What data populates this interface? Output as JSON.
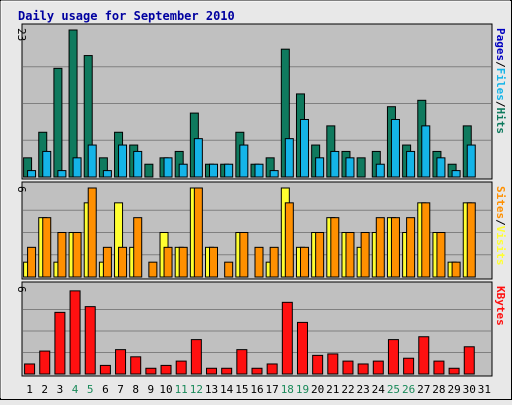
{
  "chart_data": {
    "type": "bar",
    "title": "Daily usage for September 2010",
    "categories": [
      "1",
      "2",
      "3",
      "4",
      "5",
      "6",
      "7",
      "8",
      "9",
      "10",
      "11",
      "12",
      "13",
      "14",
      "15",
      "16",
      "17",
      "18",
      "19",
      "20",
      "21",
      "22",
      "23",
      "24",
      "25",
      "26",
      "27",
      "28",
      "29",
      "30",
      "31"
    ],
    "weekend_days": [
      "4",
      "5",
      "11",
      "12",
      "18",
      "19",
      "25",
      "26"
    ],
    "panels": [
      {
        "id": "top",
        "ymax_label": "23",
        "ymax": 23,
        "legend": [
          "Pages",
          "/",
          "Files",
          "/",
          "Hits"
        ],
        "series": [
          {
            "name": "Hits",
            "color": "#0f7a5e",
            "values": [
              3,
              7,
              17,
              23,
              19,
              3,
              7,
              5,
              2,
              3,
              4,
              10,
              2,
              2,
              7,
              2,
              3,
              20,
              13,
              5,
              8,
              4,
              3,
              4,
              11,
              5,
              12,
              4,
              2,
              8,
              0
            ]
          },
          {
            "name": "Files",
            "color": "#14b4e8",
            "values": [
              1,
              4,
              1,
              3,
              5,
              1,
              5,
              4,
              0,
              3,
              2,
              6,
              2,
              2,
              5,
              2,
              1,
              6,
              9,
              3,
              4,
              3,
              0,
              2,
              9,
              4,
              8,
              3,
              1,
              5,
              0
            ]
          },
          {
            "name": "Pages",
            "color": "#0000c0",
            "values": [
              0,
              0,
              0,
              0,
              0,
              0,
              0,
              0,
              0,
              0,
              0,
              0,
              0,
              0,
              0,
              0,
              0,
              0,
              0,
              0,
              0,
              0,
              0,
              0,
              0,
              0,
              0,
              0,
              0,
              0,
              0
            ]
          }
        ]
      },
      {
        "id": "mid",
        "ymax_label": "6",
        "ymax": 6,
        "legend": [
          "Sites",
          "/",
          "Visits"
        ],
        "series": [
          {
            "name": "Visits",
            "color": "#ffff30",
            "values": [
              1,
              4,
              1,
              3,
              5,
              1,
              5,
              2,
              0,
              3,
              2,
              6,
              2,
              0,
              3,
              0,
              1,
              6,
              2,
              3,
              4,
              3,
              2,
              3,
              4,
              3,
              5,
              3,
              1,
              5,
              0
            ]
          },
          {
            "name": "Sites",
            "color": "#ff9000",
            "values": [
              2,
              4,
              3,
              3,
              6,
              2,
              2,
              4,
              1,
              2,
              2,
              6,
              2,
              1,
              3,
              2,
              2,
              5,
              2,
              3,
              4,
              3,
              3,
              4,
              4,
              4,
              5,
              3,
              1,
              5,
              0
            ]
          }
        ]
      },
      {
        "id": "bot",
        "ymax_label": "6",
        "ymax": 6,
        "legend": [
          "KBytes"
        ],
        "series": [
          {
            "name": "KBytes",
            "color": "#ff1010",
            "values": [
              0.7,
              1.6,
              4.3,
              5.8,
              4.7,
              0.6,
              1.7,
              1.2,
              0.4,
              0.6,
              0.9,
              2.4,
              0.4,
              0.4,
              1.7,
              0.4,
              0.7,
              5.0,
              3.6,
              1.3,
              1.4,
              0.9,
              0.7,
              0.9,
              2.4,
              1.1,
              2.6,
              0.9,
              0.4,
              1.9,
              0
            ]
          }
        ]
      }
    ],
    "grid": true,
    "background": "#c0c0c0",
    "legend_placement": "right"
  }
}
